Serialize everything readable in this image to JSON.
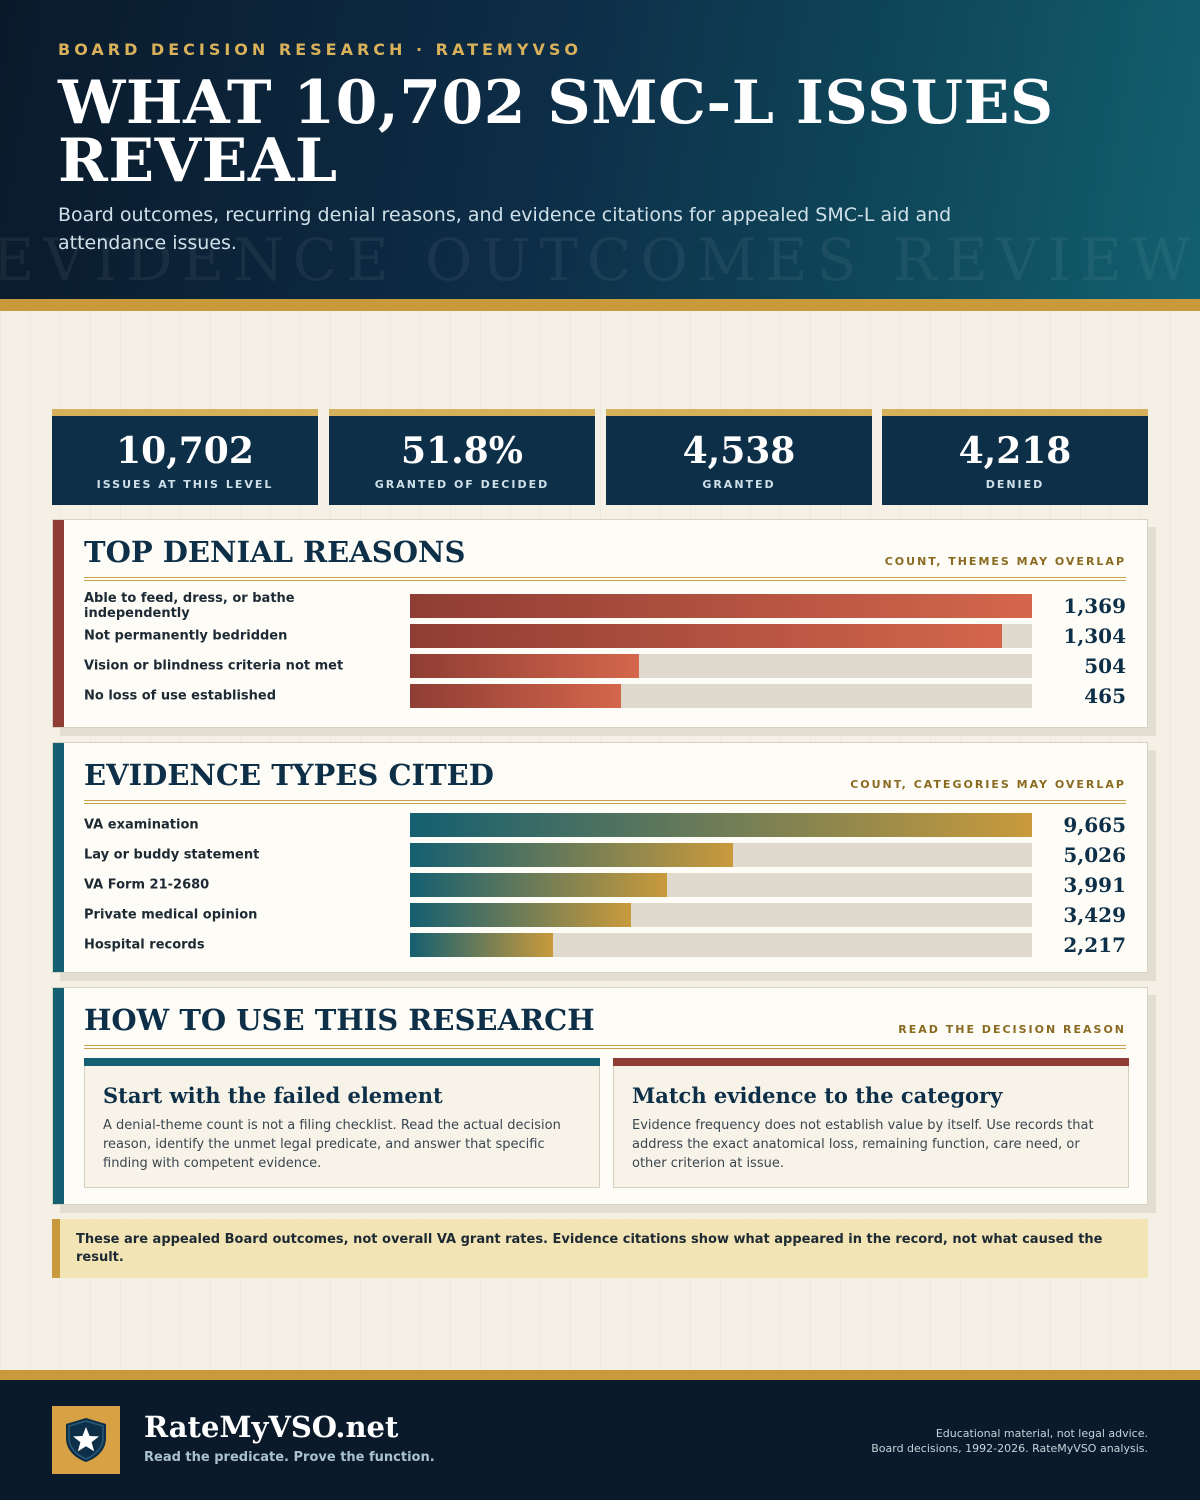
{
  "header": {
    "kicker": "BOARD DECISION RESEARCH · RATEMYVSO",
    "title": "WHAT 10,702 SMC-L ISSUES REVEAL",
    "subtitle": "Board outcomes, recurring denial reasons, and evidence citations for appealed SMC-L aid and attendance issues.",
    "watermark": "EVIDENCE OUTCOMES REVIEW"
  },
  "stats": [
    {
      "value": "10,702",
      "label": "ISSUES AT THIS LEVEL"
    },
    {
      "value": "51.8%",
      "label": "GRANTED OF DECIDED"
    },
    {
      "value": "4,538",
      "label": "GRANTED"
    },
    {
      "value": "4,218",
      "label": "DENIED"
    }
  ],
  "chart_data": [
    {
      "type": "bar",
      "orientation": "horizontal",
      "title": "TOP DENIAL REASONS",
      "note": "COUNT, THEMES MAY OVERLAP",
      "categories": [
        "Able to feed, dress, or bathe independently",
        "Not permanently bedridden",
        "Vision or blindness criteria not met",
        "No loss of use established"
      ],
      "values": [
        1369,
        1304,
        504,
        465
      ],
      "display_values": [
        "1,369",
        "1,304",
        "504",
        "465"
      ],
      "xlim": [
        0,
        1369
      ],
      "grid": false
    },
    {
      "type": "bar",
      "orientation": "horizontal",
      "title": "EVIDENCE TYPES CITED",
      "note": "COUNT, CATEGORIES MAY OVERLAP",
      "categories": [
        "VA examination",
        "Lay or buddy statement",
        "VA Form 21-2680",
        "Private medical opinion",
        "Hospital records"
      ],
      "values": [
        9665,
        5026,
        3991,
        3429,
        2217
      ],
      "display_values": [
        "9,665",
        "5,026",
        "3,991",
        "3,429",
        "2,217"
      ],
      "xlim": [
        0,
        9665
      ],
      "grid": false
    }
  ],
  "howto": {
    "title": "HOW TO USE THIS RESEARCH",
    "note": "READ THE DECISION REASON",
    "cards": [
      {
        "title": "Start with the failed element",
        "text": "A denial-theme count is not a filing checklist. Read the actual decision reason, identify the unmet legal predicate, and answer that specific finding with competent evidence."
      },
      {
        "title": "Match evidence to the category",
        "text": "Evidence frequency does not establish value by itself. Use records that address the exact anatomical loss, remaining function, care need, or other criterion at issue."
      }
    ]
  },
  "note": "These are appealed Board outcomes, not overall VA grant rates. Evidence citations show what appeared in the record, not what caused the result.",
  "footer": {
    "brand": "RateMyVSO.net",
    "tagline": "Read the predicate. Prove the function.",
    "disclaimer_line1": "Educational material, not legal advice.",
    "disclaimer_line2": "Board decisions, 1992-2026. RateMyVSO analysis.",
    "logo_icon": "shield-star-icon"
  },
  "colors": {
    "navy": "#0e2f48",
    "gold": "#c99a3c",
    "denial_accent": "#8f3d34",
    "evidence_accent": "#145f71",
    "cream": "#f4f0e6"
  }
}
